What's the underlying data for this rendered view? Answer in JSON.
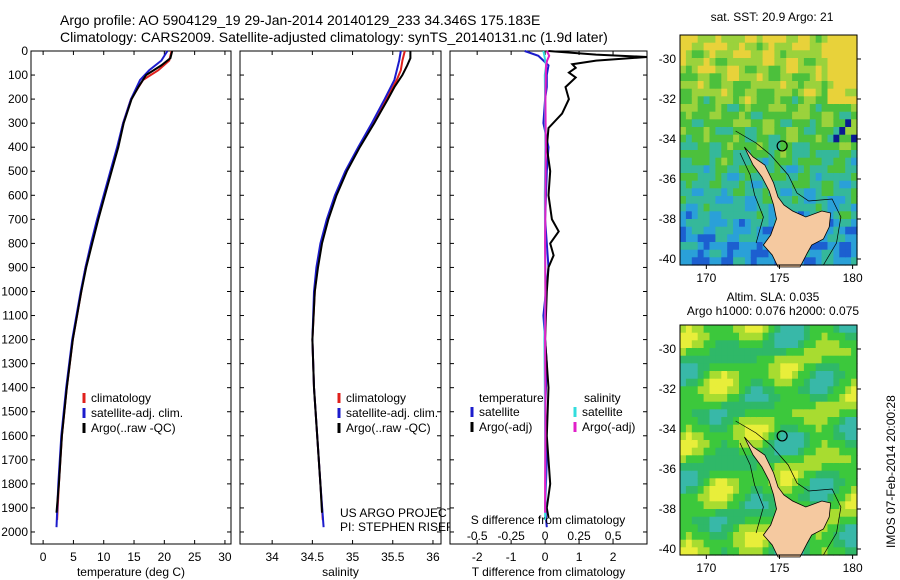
{
  "header": {
    "line1": "Argo profile: AO 5904129_19 29-Jan-2014 20140129_233 34.346S 175.183E",
    "line2": "Climatology: CARS2009. Satellite-adjusted climatology: synTS_20140131.nc (1.9d later)"
  },
  "side_note": "IMOS 07-Feb-2014 20:00:28",
  "colors": {
    "climatology": "#e0201c",
    "satellite": "#1c1ccc",
    "argo": "#000000",
    "sat_salinity": "#33dddd",
    "argo_salinity": "#e020c8",
    "land": "#f5c9a0"
  },
  "chart_data": [
    {
      "type": "line",
      "xlabel": "temperature (deg C)",
      "xlim": [
        -2,
        31
      ],
      "x_ticks": [
        0,
        5,
        10,
        15,
        20,
        25,
        30
      ],
      "ylim": [
        2050,
        0
      ],
      "y_ticks": [
        0,
        100,
        200,
        300,
        400,
        500,
        600,
        700,
        800,
        900,
        1000,
        1100,
        1200,
        1300,
        1400,
        1500,
        1600,
        1700,
        1800,
        1900,
        2000
      ],
      "legend": [
        "climatology",
        "satellite-adj. clim.",
        "Argo(..raw -QC)"
      ],
      "series": [
        {
          "name": "climatology",
          "color": "#e0201c",
          "depth": [
            0,
            40,
            80,
            120,
            200,
            300,
            400,
            500,
            600,
            700,
            800,
            900,
            1000,
            1200,
            1400,
            1600,
            1800,
            1950
          ],
          "values": [
            21.2,
            20.8,
            19.0,
            16.5,
            14.5,
            13.2,
            12.3,
            11.2,
            10.1,
            9.0,
            8.0,
            7.0,
            6.3,
            4.9,
            3.9,
            3.1,
            2.6,
            2.3
          ]
        },
        {
          "name": "satellite-adj. clim.",
          "color": "#1c1ccc",
          "depth": [
            0,
            40,
            80,
            120,
            200,
            300,
            400,
            500,
            600,
            700,
            800,
            900,
            1000,
            1200,
            1400,
            1600,
            1800,
            1980
          ],
          "values": [
            20.5,
            19.5,
            17.5,
            16.0,
            14.5,
            13.2,
            12.2,
            11.1,
            10.0,
            8.9,
            7.9,
            7.0,
            6.2,
            4.8,
            3.8,
            3.0,
            2.5,
            2.2
          ]
        },
        {
          "name": "Argo(..raw -QC)",
          "color": "#000000",
          "depth": [
            0,
            30,
            60,
            100,
            150,
            200,
            300,
            400,
            500,
            600,
            700,
            800,
            900,
            1000,
            1200,
            1400,
            1600,
            1800,
            1920
          ],
          "values": [
            21.3,
            21.0,
            19.5,
            17.0,
            15.7,
            14.6,
            13.3,
            12.4,
            11.3,
            10.2,
            9.1,
            8.1,
            7.1,
            6.3,
            4.9,
            3.9,
            3.1,
            2.6,
            2.2
          ]
        }
      ]
    },
    {
      "type": "line",
      "xlabel": "salinity",
      "xlim": [
        33.6,
        36.1
      ],
      "x_ticks": [
        34,
        34.5,
        35,
        35.5,
        36
      ],
      "x_tick_labels": [
        "34",
        "34.5",
        "35",
        "35.5",
        "36"
      ],
      "ylim": [
        2050,
        0
      ],
      "legend": [
        "climatology",
        "satellite-adj. clim.",
        "Argo(..raw -QC)"
      ],
      "annotation": [
        "US ARGO PROJECT",
        "PI: STEPHEN RISER"
      ],
      "series": [
        {
          "name": "climatology",
          "color": "#e0201c",
          "depth": [
            0,
            40,
            80,
            120,
            200,
            300,
            400,
            500,
            600,
            700,
            800,
            900,
            1000,
            1200,
            1400,
            1600,
            1800,
            1950
          ],
          "values": [
            35.65,
            35.62,
            35.6,
            35.55,
            35.42,
            35.25,
            35.08,
            34.92,
            34.79,
            34.69,
            34.61,
            34.56,
            34.53,
            34.5,
            34.52,
            34.56,
            34.6,
            34.63
          ]
        },
        {
          "name": "satellite-adj. clim.",
          "color": "#1c1ccc",
          "depth": [
            0,
            40,
            80,
            120,
            200,
            300,
            400,
            500,
            600,
            700,
            800,
            900,
            1000,
            1200,
            1400,
            1600,
            1800,
            1980
          ],
          "values": [
            35.6,
            35.58,
            35.55,
            35.52,
            35.4,
            35.24,
            35.07,
            34.91,
            34.78,
            34.68,
            34.6,
            34.55,
            34.52,
            34.5,
            34.52,
            34.56,
            34.6,
            34.64
          ]
        },
        {
          "name": "Argo(..raw -QC)",
          "color": "#000000",
          "depth": [
            0,
            30,
            60,
            100,
            150,
            200,
            300,
            400,
            500,
            600,
            700,
            800,
            900,
            1000,
            1200,
            1400,
            1600,
            1800,
            1920
          ],
          "values": [
            35.72,
            35.72,
            35.68,
            35.62,
            35.52,
            35.44,
            35.27,
            35.09,
            34.93,
            34.8,
            34.7,
            34.62,
            34.57,
            34.53,
            34.5,
            34.52,
            34.56,
            34.6,
            34.62
          ]
        }
      ]
    },
    {
      "type": "line",
      "xlabel": "T difference from climatology",
      "xlabel_top": "S difference from climatology",
      "xlim": [
        -2.8,
        3.0
      ],
      "x_ticks": [
        -2,
        -1,
        0,
        1,
        2
      ],
      "x_tick_labels": [
        "-2",
        "-1",
        "0",
        "1",
        "2"
      ],
      "x2_ticks": [
        -0.5,
        -0.25,
        0,
        0.25,
        0.5
      ],
      "x2_tick_labels": [
        "-0.5",
        "-0.25",
        "0",
        "0.25",
        "0.5"
      ],
      "x2_lim": [
        -0.7,
        0.75
      ],
      "ylim": [
        2050,
        0
      ],
      "legend_temperature_title": "temperature",
      "legend_salinity_title": "salinity",
      "legend_temperature": [
        "satellite",
        "Argo(-adj)"
      ],
      "legend_salinity": [
        "satellite",
        "Argo(-adj)"
      ],
      "series": [
        {
          "name": "T satellite",
          "color": "#1c1ccc",
          "depth": [
            0,
            20,
            60,
            100,
            150,
            200,
            300,
            400,
            500,
            700,
            900,
            1100,
            1300,
            1500,
            1700,
            1900,
            1980
          ],
          "values": [
            -0.6,
            -0.2,
            0.1,
            0.05,
            0.05,
            0.0,
            -0.05,
            0.1,
            0.05,
            0.0,
            0.1,
            -0.05,
            0.05,
            0.0,
            0.05,
            0.0,
            0.05
          ]
        },
        {
          "name": "T Argo(-adj)",
          "color": "#000000",
          "depth": [
            0,
            15,
            25,
            40,
            55,
            70,
            90,
            110,
            150,
            200,
            260,
            320,
            400,
            500,
            600,
            700,
            750,
            800,
            850,
            900,
            1000,
            1200,
            1400,
            1600,
            1800,
            1900,
            1940
          ],
          "values": [
            0.1,
            1.5,
            3.0,
            1.5,
            0.8,
            0.9,
            0.7,
            0.9,
            0.6,
            0.7,
            0.5,
            0.1,
            0.05,
            0.15,
            0.1,
            0.2,
            0.4,
            0.15,
            0.25,
            0.1,
            0.05,
            0.0,
            0.1,
            0.05,
            0.15,
            0.05,
            0.1
          ]
        },
        {
          "name": "S satellite",
          "color": "#33dddd",
          "depth": [
            0,
            20,
            60,
            100,
            200,
            400,
            600,
            800,
            1000,
            1200,
            1400,
            1600,
            1800,
            1950
          ],
          "values": [
            -0.05,
            -0.02,
            0.03,
            -0.01,
            0.0,
            0.01,
            -0.01,
            0.0,
            0.01,
            -0.02,
            -0.01,
            0.0,
            0.01,
            0.0
          ]
        },
        {
          "name": "S Argo(-adj)",
          "color": "#e020c8",
          "depth": [
            0,
            20,
            40,
            60,
            100,
            200,
            400,
            600,
            800,
            1000,
            1200,
            1400,
            1600,
            1800,
            1920
          ],
          "values": [
            0.05,
            0.12,
            0.06,
            0.03,
            0.02,
            0.01,
            0.02,
            0.01,
            0.0,
            0.01,
            0.0,
            0.01,
            0.01,
            0.0,
            0.0
          ]
        }
      ]
    },
    {
      "type": "heatmap",
      "title": "sat. SST: 20.9 Argo: 21",
      "x_ticks": [
        170,
        175,
        180
      ],
      "y_ticks": [
        -30,
        -32,
        -34,
        -36,
        -38,
        -40
      ],
      "xlim": [
        168.2,
        180.3
      ],
      "ylim": [
        -40.3,
        -28.8
      ]
    },
    {
      "type": "heatmap",
      "title": "Altim. SLA: 0.035",
      "subtitle": "Argo h1000: 0.076 h2000: 0.075",
      "x_ticks": [
        170,
        175,
        180
      ],
      "y_ticks": [
        -30,
        -32,
        -34,
        -36,
        -38,
        -40
      ],
      "xlim": [
        168.2,
        180.3
      ],
      "ylim": [
        -40.3,
        -28.8
      ]
    }
  ]
}
